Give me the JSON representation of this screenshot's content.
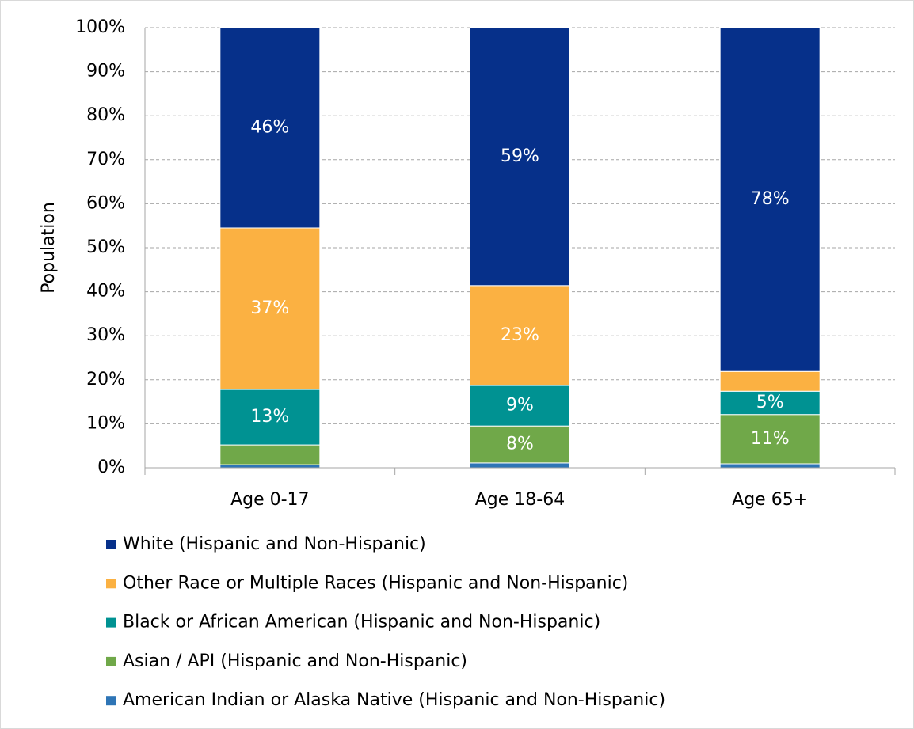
{
  "chart_data": {
    "type": "stacked_bar",
    "y_label": "Population",
    "categories": [
      "Age 0-17",
      "Age 18-64",
      "Age 65+"
    ],
    "series": [
      {
        "name": "American Indian or Alaska Native (Hispanic and Non-Hispanic)",
        "color": "#2e75b6",
        "values": [
          0.7,
          1.1,
          0.9
        ],
        "value_labels": [
          null,
          null,
          null
        ]
      },
      {
        "name": "Asian / API (Hispanic and Non-Hispanic)",
        "color": "#70a849",
        "values": [
          4.5,
          8.4,
          11.2
        ],
        "value_labels": [
          null,
          "8%",
          "11%"
        ]
      },
      {
        "name": "Black or African American (Hispanic and Non-Hispanic)",
        "color": "#009292",
        "values": [
          12.6,
          9.2,
          5.3
        ],
        "value_labels": [
          "13%",
          "9%",
          "5%"
        ]
      },
      {
        "name": "Other Race or Multiple Races (Hispanic and Non-Hispanic)",
        "color": "#fbb142",
        "values": [
          36.7,
          22.7,
          4.5
        ],
        "value_labels": [
          "37%",
          "23%",
          null
        ]
      },
      {
        "name": "White (Hispanic and Non-Hispanic)",
        "color": "#06308a",
        "values": [
          45.5,
          58.6,
          78.1
        ],
        "value_labels": [
          "46%",
          "59%",
          "78%"
        ]
      }
    ],
    "ylim": [
      0,
      100
    ],
    "yticks": [
      {
        "value": 0,
        "label": "0%"
      },
      {
        "value": 10,
        "label": "10%"
      },
      {
        "value": 20,
        "label": "20%"
      },
      {
        "value": 30,
        "label": "30%"
      },
      {
        "value": 40,
        "label": "40%"
      },
      {
        "value": 50,
        "label": "50%"
      },
      {
        "value": 60,
        "label": "60%"
      },
      {
        "value": 70,
        "label": "70%"
      },
      {
        "value": 80,
        "label": "80%"
      },
      {
        "value": 90,
        "label": "90%"
      },
      {
        "value": 100,
        "label": "100%"
      }
    ],
    "grid": true,
    "legend": "bottom"
  }
}
